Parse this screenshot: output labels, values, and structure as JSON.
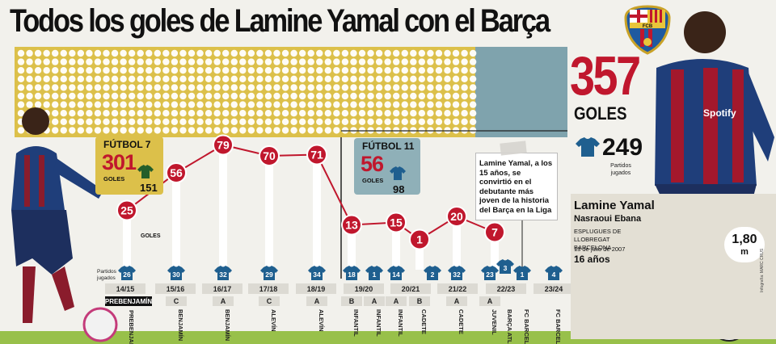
{
  "title": "Todos los goles de Lamine Yamal con el Barça",
  "totals": {
    "goals": "357",
    "goals_label": "GOLES",
    "matches": "249",
    "matches_label": "Partidos jugados"
  },
  "player": {
    "name": "Lamine Yamal",
    "surname": "Nasraoui Ebana",
    "birthplace": "ESPLUGUES DE LLOBREGAT BARCELONA",
    "birthdate": "13 de julio de 2007",
    "age": "16 años",
    "height": "1,80",
    "height_unit": "m",
    "shirt_sponsor": "Spotify"
  },
  "club_badge_text": "FCB",
  "futbol7": {
    "label": "FÚTBOL 7",
    "goals": "301",
    "goals_label": "GOLES",
    "matches": "151"
  },
  "futbol11": {
    "label": "FÚTBOL 11",
    "goals": "56",
    "goals_label": "GOLES",
    "matches": "98"
  },
  "annotation": "Lamine Yamal, a los 15 años, se convirtió en el debutante más joven de la historia del Barça en la Liga",
  "matches_row_label": "Partidos jugados",
  "first_point_suffix": "GOLES",
  "credit": "Infografía: MARC CRUS",
  "colors": {
    "accent_red": "#c0172d",
    "futbol7_box": "#dcc04a",
    "futbol11_box": "#8fb0b8",
    "shirt": "#1f5f8f",
    "grass": "#98c04a"
  },
  "chart_data": {
    "type": "line",
    "title": "Todos los goles de Lamine Yamal con el Barça",
    "seasons": [
      "14/15",
      "15/16",
      "16/17",
      "17/18",
      "18/19",
      "19/20",
      "20/21",
      "21/22",
      "22/23",
      "23/24"
    ],
    "points": [
      {
        "season": "14/15",
        "category": "PREBENJAMÍN",
        "code": "",
        "goals": 25,
        "matches": 26
      },
      {
        "season": "15/16",
        "category": "BENJAMÍN",
        "code": "C",
        "goals": 56,
        "matches": 30
      },
      {
        "season": "16/17",
        "category": "BENJAMÍN",
        "code": "A",
        "goals": 79,
        "matches": 32
      },
      {
        "season": "17/18",
        "category": "ALEVÍN",
        "code": "C",
        "goals": 70,
        "matches": 29
      },
      {
        "season": "18/19",
        "category": "ALEVÍN",
        "code": "A",
        "goals": 71,
        "matches": 34
      },
      {
        "season": "19/20",
        "category": "INFANTIL",
        "code": "B",
        "goals": 13,
        "matches": 18
      },
      {
        "season": "19/20",
        "category": "INFANTIL",
        "code": "A",
        "goals": null,
        "matches": 1
      },
      {
        "season": "20/21",
        "category": "INFANTIL",
        "code": "A",
        "goals": 15,
        "matches": 14
      },
      {
        "season": "20/21",
        "category": "CADETE",
        "code": "B",
        "goals": 1,
        "matches": 2
      },
      {
        "season": "21/22",
        "category": "CADETE",
        "code": "A",
        "goals": 20,
        "matches": 32
      },
      {
        "season": "22/23",
        "category": "JUVENIL",
        "code": "A",
        "goals": 7,
        "matches": 23
      },
      {
        "season": "22/23",
        "category": "BARÇA ATLÈTIC",
        "code": "",
        "goals": null,
        "matches": 3
      },
      {
        "season": "22/23",
        "category": "FC BARCELONA",
        "code": "",
        "goals": null,
        "matches": 1
      },
      {
        "season": "23/24",
        "category": "FC BARCELONA",
        "code": "",
        "goals": null,
        "matches": 4
      }
    ],
    "goal_dots": {
      "total": 357,
      "futbol7": 301,
      "futbol11": 56
    }
  }
}
